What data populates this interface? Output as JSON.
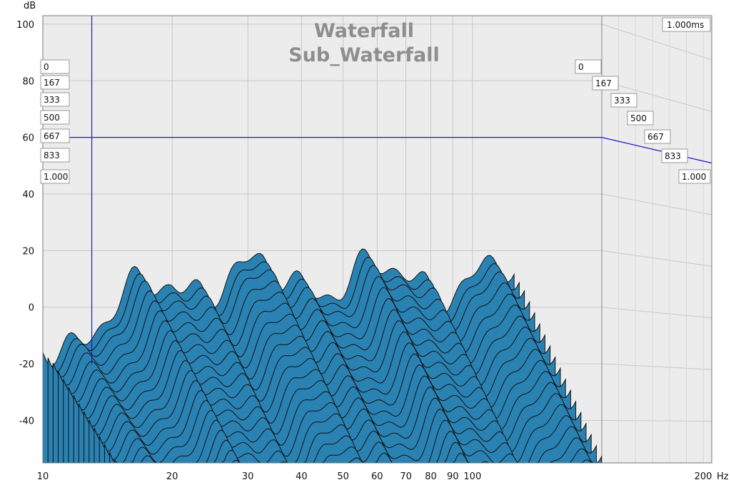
{
  "chart_data": {
    "type": "area",
    "title": "Waterfall",
    "subtitle": "Sub_Waterfall",
    "ylabel": "dB",
    "xunit": "Hz",
    "x_scale": "log",
    "xlim": [
      10,
      200
    ],
    "ylim": [
      -55,
      103
    ],
    "y_ticks": [
      "100",
      "80",
      "60",
      "40",
      "20",
      "0",
      "-20",
      "-40"
    ],
    "x_ticks": [
      {
        "value": 10,
        "label": "10"
      },
      {
        "value": 20,
        "label": "20"
      },
      {
        "value": 30,
        "label": "30"
      },
      {
        "value": 40,
        "label": "40"
      },
      {
        "value": 50,
        "label": "50"
      },
      {
        "value": 60,
        "label": "60"
      },
      {
        "value": 70,
        "label": "70"
      },
      {
        "value": 80,
        "label": "80"
      },
      {
        "value": 90,
        "label": "90"
      },
      {
        "value": 100,
        "label": "100"
      },
      {
        "value": 200,
        "label": "200"
      }
    ],
    "time_labels": [
      "0",
      "167",
      "333",
      "500",
      "667",
      "833",
      "1.000"
    ],
    "time_axis_label": "1.000ms",
    "grid": true,
    "cursor": {
      "freq_hz": 13,
      "db": 60
    },
    "slice_peak_db": [
      10,
      8,
      6,
      3,
      0,
      -3,
      -6,
      -9,
      -12,
      -15,
      -18,
      -21,
      -24,
      -27,
      -30,
      -33,
      -36,
      -39,
      -42,
      -45,
      -48,
      -51
    ],
    "colors": {
      "fill": "#2a82b3",
      "outline": "#111111",
      "cursor": "#1a1acc",
      "grid": "#c8c8c8",
      "plot_bg": "#ececec",
      "title": "#8e8e8e"
    }
  }
}
